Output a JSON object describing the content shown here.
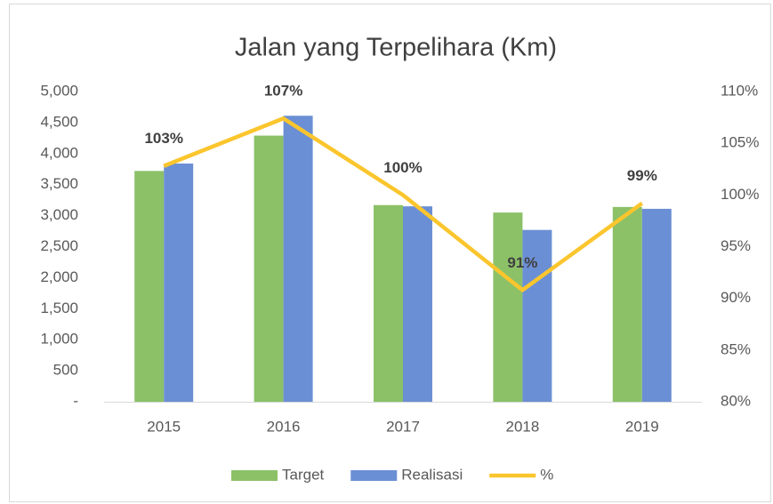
{
  "chart_data": {
    "type": "bar",
    "title": "Jalan yang Terpelihara (Km)",
    "categories": [
      "2015",
      "2016",
      "2017",
      "2018",
      "2019"
    ],
    "series": [
      {
        "name": "Target",
        "color": "#8cc168",
        "values": [
          3720,
          4290,
          3170,
          3050,
          3140
        ]
      },
      {
        "name": "Realisasi",
        "color": "#6b8fd4",
        "values": [
          3840,
          4610,
          3150,
          2770,
          3110
        ]
      },
      {
        "name": "%",
        "color": "#fbc52d",
        "type": "line",
        "axis": "y2",
        "values": [
          102.8,
          107.4,
          100,
          90.8,
          99.2
        ],
        "value_labels": [
          "103%",
          "107%",
          "100%",
          "91%",
          "99%"
        ]
      }
    ],
    "ylim": [
      0,
      5000
    ],
    "yticks": [
      {
        "value": 0,
        "label": "-"
      },
      500,
      {
        "value": 1000,
        "label": "1,000"
      },
      {
        "value": 1500,
        "label": "1,500"
      },
      {
        "value": 2000,
        "label": "2,000"
      },
      {
        "value": 2500,
        "label": "2,500"
      },
      {
        "value": 3000,
        "label": "3,000"
      },
      {
        "value": 3500,
        "label": "3,500"
      },
      {
        "value": 4000,
        "label": "4,000"
      },
      {
        "value": 4500,
        "label": "4,500"
      },
      {
        "value": 5000,
        "label": "5,000"
      }
    ],
    "y2lim": [
      80,
      110
    ],
    "y2ticks": [
      {
        "value": 80,
        "label": "80%"
      },
      {
        "value": 85,
        "label": "85%"
      },
      {
        "value": 90,
        "label": "90%"
      },
      {
        "value": 95,
        "label": "95%"
      },
      {
        "value": 100,
        "label": "100%"
      },
      {
        "value": 105,
        "label": "105%"
      },
      {
        "value": 110,
        "label": "110%"
      }
    ],
    "legend": "bottom"
  }
}
